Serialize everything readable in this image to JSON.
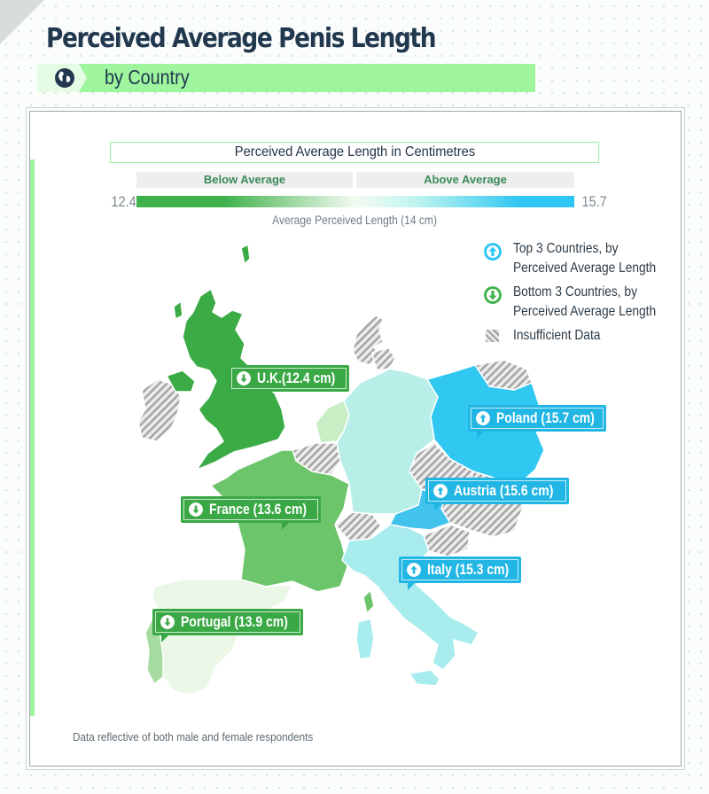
{
  "title": "Perceived Average Penis Length",
  "subtitle": "by Country",
  "legend": {
    "title": "Perceived Average Length in Centimetres",
    "below_label": "Below Average",
    "above_label": "Above Average",
    "min_value": "12.4",
    "max_value": "15.7",
    "average_label": "Average Perceived Length (14 cm)",
    "items": [
      {
        "icon": "arrow-up-circle-icon",
        "line1": "Top 3 Countries, by",
        "line2": "Perceived Average Length",
        "color": "#2ec6f2"
      },
      {
        "icon": "arrow-down-circle-icon",
        "line1": "Bottom 3 Countries, by",
        "line2": "Perceived Average Length",
        "color": "#3fb24b"
      },
      {
        "icon": "hatch-swatch",
        "line1": "Insufficient Data",
        "line2": ""
      }
    ]
  },
  "colors": {
    "low": "#3fb24b",
    "mid": "#f3fbf2",
    "high": "#2ec6f2",
    "uk": "#3aab45",
    "france": "#6cc56b",
    "portugal": "#a6dba0",
    "spain": "#eaf7e6",
    "netherlands": "#c8eec6",
    "germany": "#b7efe8",
    "poland": "#30c8f1",
    "austria": "#42c3ee",
    "italy": "#a8ecee",
    "insufficient": "#bdbdbd"
  },
  "callouts": [
    {
      "country": "U.K.",
      "label": "U.K.(12.4 cm)",
      "value_cm": 12.4,
      "direction": "down"
    },
    {
      "country": "France",
      "label": "France (13.6 cm)",
      "value_cm": 13.6,
      "direction": "down"
    },
    {
      "country": "Portugal",
      "label": "Portugal (13.9 cm)",
      "value_cm": 13.9,
      "direction": "down"
    },
    {
      "country": "Poland",
      "label": "Poland (15.7 cm)",
      "value_cm": 15.7,
      "direction": "up"
    },
    {
      "country": "Austria",
      "label": "Austria (15.6 cm)",
      "value_cm": 15.6,
      "direction": "up"
    },
    {
      "country": "Italy",
      "label": "Italy (15.3 cm)",
      "value_cm": 15.3,
      "direction": "up"
    }
  ],
  "footnote": "Data reflective of both male and female respondents"
}
